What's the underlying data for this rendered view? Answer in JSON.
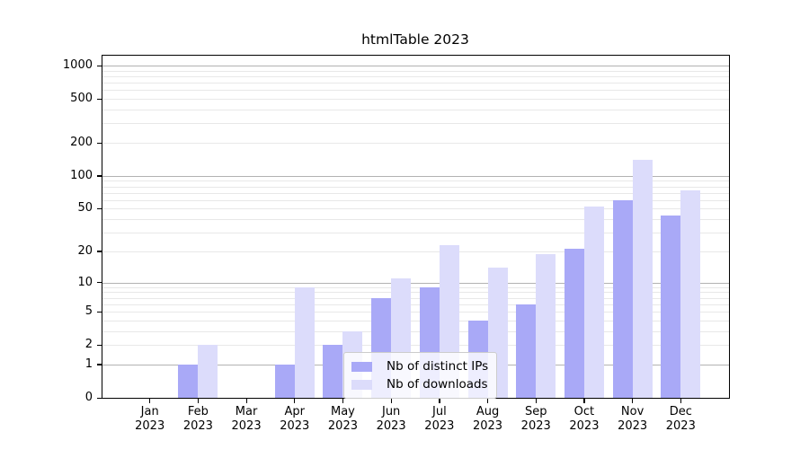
{
  "title": "htmlTable 2023",
  "chart_data": {
    "type": "bar",
    "title": "htmlTable 2023",
    "categories": [
      "Jan 2023",
      "Feb 2023",
      "Mar 2023",
      "Apr 2023",
      "May 2023",
      "Jun 2023",
      "Jul 2023",
      "Aug 2023",
      "Sep 2023",
      "Oct 2023",
      "Nov 2023",
      "Dec 2023"
    ],
    "series": [
      {
        "name": "Nb of distinct IPs",
        "color": "#a9a9f7",
        "values": [
          0,
          1,
          0,
          1,
          2,
          7,
          9,
          4,
          6,
          21,
          60,
          43
        ]
      },
      {
        "name": "Nb of downloads",
        "color": "#dcdcfb",
        "values": [
          0,
          2,
          0,
          9,
          3,
          11,
          23,
          14,
          19,
          52,
          140,
          74
        ]
      }
    ],
    "xlabel": "",
    "ylabel": "",
    "yscale": "log1p",
    "ylim": [
      0,
      1250
    ],
    "yticks": [
      0,
      1,
      2,
      5,
      10,
      20,
      50,
      100,
      200,
      500,
      1000
    ],
    "grid": {
      "major": [
        1,
        10,
        100,
        1000
      ],
      "minor": [
        2,
        3,
        4,
        5,
        6,
        7,
        8,
        9,
        20,
        30,
        40,
        50,
        60,
        70,
        80,
        90,
        200,
        300,
        400,
        500,
        600,
        700,
        800,
        900
      ],
      "major_color": "#b2b2b2",
      "minor_color": "#e8e8e8"
    },
    "legend_position": "lower-center-inside"
  }
}
